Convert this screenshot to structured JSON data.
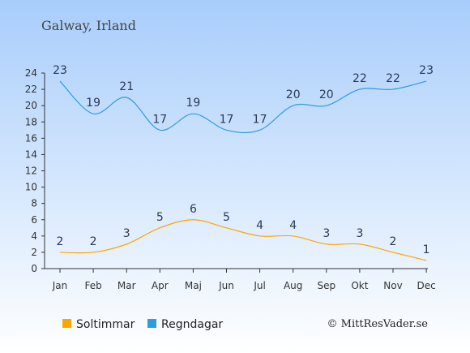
{
  "chart_data": {
    "type": "line",
    "title": "Galway, Irland",
    "categories": [
      "Jan",
      "Feb",
      "Mar",
      "Apr",
      "Maj",
      "Jun",
      "Jul",
      "Aug",
      "Sep",
      "Okt",
      "Nov",
      "Dec"
    ],
    "series": [
      {
        "name": "Soltimmar",
        "color": "#ffa500",
        "values": [
          2,
          2,
          3,
          5,
          6,
          5,
          4,
          4,
          3,
          3,
          2,
          1
        ]
      },
      {
        "name": "Regndagar",
        "color": "#2f9be0",
        "values": [
          23,
          19,
          21,
          17,
          19,
          17,
          17,
          20,
          20,
          22,
          22,
          23
        ]
      }
    ],
    "yticks": [
      0,
      2,
      4,
      6,
      8,
      10,
      12,
      14,
      16,
      18,
      20,
      22,
      24
    ],
    "ylim": [
      0,
      24
    ],
    "grid": false,
    "legend_position": "bottom-left"
  },
  "credit": "© MittResVader.se",
  "colors": {
    "background_top": "#a8cdfb",
    "background_bottom": "#ffffff",
    "axis": "#333333"
  }
}
